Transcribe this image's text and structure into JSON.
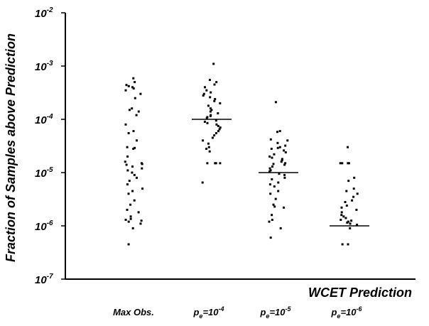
{
  "chart_data": {
    "type": "scatter",
    "title": "",
    "xlabel": "WCET Prediction",
    "ylabel": "Fraction of Samples above Prediction",
    "yscale": "log",
    "ylim": [
      1e-07,
      0.01
    ],
    "yticks": [
      {
        "base": "10",
        "exp": "-2",
        "value": 0.01
      },
      {
        "base": "10",
        "exp": "-3",
        "value": 0.001
      },
      {
        "base": "10",
        "exp": "-4",
        "value": 0.0001
      },
      {
        "base": "10",
        "exp": "-5",
        "value": 1e-05
      },
      {
        "base": "10",
        "exp": "-6",
        "value": 1e-06
      },
      {
        "base": "10",
        "exp": "-7",
        "value": 1e-07
      }
    ],
    "grid": false,
    "categories": [
      {
        "label": "Max Obs.",
        "label_parts": null,
        "median": null,
        "values": [
          0.00059,
          0.0005,
          0.00044,
          0.00042,
          0.0004,
          0.00038,
          0.00035,
          0.0003,
          0.00025,
          0.00016,
          0.00015,
          0.00014,
          0.00012,
          8e-05,
          6e-05,
          5.5e-05,
          4e-05,
          3e-05,
          2.9e-05,
          2.8e-05,
          2e-05,
          1.6e-05,
          1.5e-05,
          1.45e-05,
          1.4e-05,
          1.3e-05,
          1.2e-05,
          1.1e-05,
          1e-05,
          9e-06,
          8e-06,
          7e-06,
          6e-06,
          5e-06,
          4.5e-06,
          4e-06,
          3e-06,
          2.5e-06,
          2e-06,
          1.8e-06,
          1.5e-06,
          1.35e-06,
          1.3e-06,
          1.25e-06,
          1.2e-06,
          1.1e-06,
          9e-07,
          4.5e-07
        ]
      },
      {
        "label": "",
        "label_parts": {
          "base": "p",
          "sub": "e",
          "mid": "=10",
          "exp": "-4"
        },
        "median": 0.0001,
        "values": [
          0.0011,
          0.00055,
          0.0005,
          0.00045,
          0.0004,
          0.00035,
          0.00032,
          0.0003,
          0.00028,
          0.00026,
          0.00024,
          0.00022,
          0.0002,
          0.00018,
          0.00016,
          0.00015,
          0.00014,
          0.00013,
          0.00012,
          0.000115,
          0.00011,
          0.000105,
          9.5e-05,
          9e-05,
          8.5e-05,
          8e-05,
          7.5e-05,
          7e-05,
          6.5e-05,
          6e-05,
          5.5e-05,
          5e-05,
          4.5e-05,
          4e-05,
          3.5e-05,
          3e-05,
          2.8e-05,
          2.5e-05,
          1.5e-05,
          1.5e-05,
          1.5e-05,
          1.5e-05,
          6.5e-06
        ]
      },
      {
        "label": "",
        "label_parts": {
          "base": "p",
          "sub": "e",
          "mid": "=10",
          "exp": "-5"
        },
        "median": 1e-05,
        "values": [
          0.00021,
          6e-05,
          5.8e-05,
          4.2e-05,
          4e-05,
          3.6e-05,
          3.2e-05,
          3e-05,
          2.9e-05,
          2.8e-05,
          2.6e-05,
          2.4e-05,
          2.2e-05,
          2e-05,
          1.9e-05,
          1.8e-05,
          1.7e-05,
          1.6e-05,
          1.5e-05,
          1.45e-05,
          1.4e-05,
          1.3e-05,
          1.2e-05,
          1.1e-05,
          1.05e-05,
          9.5e-06,
          9e-06,
          8e-06,
          7.5e-06,
          6.5e-06,
          6e-06,
          5.5e-06,
          4.5e-06,
          4e-06,
          3.2e-06,
          2.5e-06,
          2.3e-06,
          2.2e-06,
          1.6e-06,
          1.3e-06,
          1.2e-06,
          9e-07,
          6e-07
        ]
      },
      {
        "label": "",
        "label_parts": {
          "base": "p",
          "sub": "e",
          "mid": "=10",
          "exp": "-6"
        },
        "median": 1e-06,
        "values": [
          3e-05,
          1.5e-05,
          1.5e-05,
          1.5e-05,
          1.5e-05,
          8e-06,
          7e-06,
          5e-06,
          4.5e-06,
          4e-06,
          3.5e-06,
          3e-06,
          2.8e-06,
          2.4e-06,
          2.2e-06,
          2e-06,
          1.8e-06,
          1.6e-06,
          1.5e-06,
          1.4e-06,
          1.3e-06,
          1.25e-06,
          1.2e-06,
          1.15e-06,
          1.1e-06,
          1.05e-06,
          9e-07,
          4.5e-07,
          4.5e-07
        ]
      }
    ]
  }
}
